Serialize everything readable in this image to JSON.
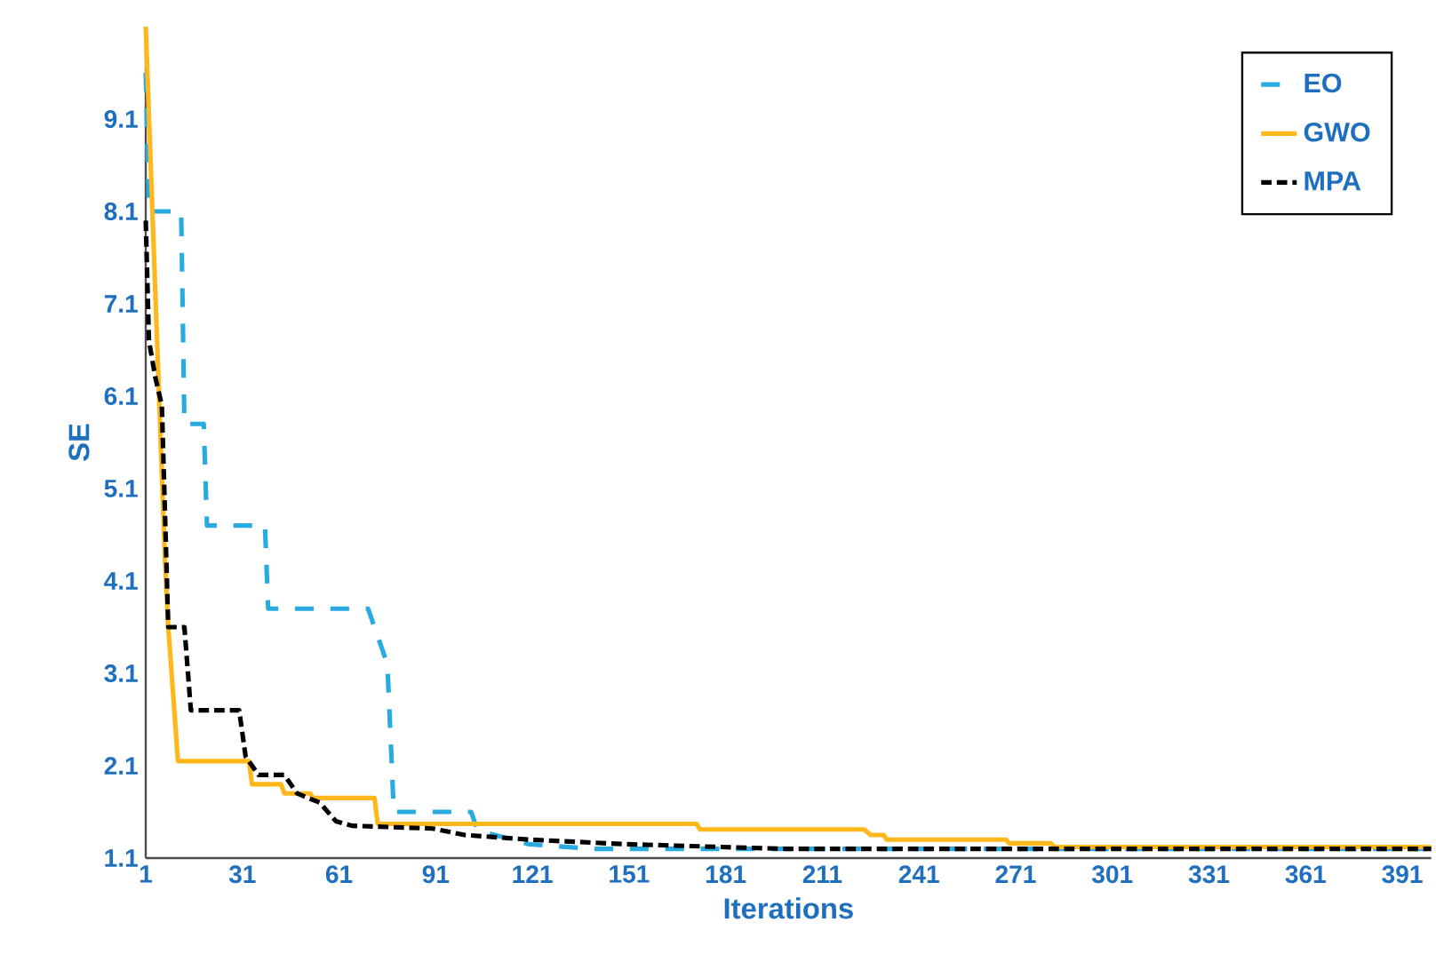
{
  "chart_data": {
    "type": "line",
    "xlabel": "Iterations",
    "ylabel": "SE",
    "xlim": [
      1,
      400
    ],
    "ylim": [
      1.1,
      10.1
    ],
    "xticks": [
      1,
      31,
      61,
      91,
      121,
      151,
      181,
      211,
      241,
      271,
      301,
      331,
      361,
      391
    ],
    "yticks": [
      1.1,
      2.1,
      3.1,
      4.1,
      5.1,
      6.1,
      7.1,
      8.1,
      9.1
    ],
    "grid": false,
    "legend": "top right",
    "marker": "none",
    "series": [
      {
        "name": "EO",
        "color": "#29abe2",
        "line_style": "dashed",
        "x": [
          1,
          2,
          12,
          13,
          19,
          20,
          38,
          39,
          70,
          76,
          78,
          102,
          104,
          120,
          140,
          400
        ],
        "values": [
          9.6,
          8.1,
          8.1,
          5.8,
          5.8,
          4.7,
          4.7,
          3.8,
          3.8,
          3.2,
          1.6,
          1.6,
          1.4,
          1.25,
          1.2,
          1.2
        ]
      },
      {
        "name": "GWO",
        "color": "#ffb81c",
        "line_style": "solid",
        "x": [
          1,
          7,
          8,
          11,
          33,
          34,
          43,
          44,
          52,
          53,
          72,
          73,
          172,
          173,
          224,
          226,
          230,
          231,
          268,
          269,
          282,
          283,
          400
        ],
        "values": [
          10.1,
          4.3,
          3.6,
          2.15,
          2.15,
          1.9,
          1.9,
          1.8,
          1.8,
          1.75,
          1.75,
          1.47,
          1.47,
          1.41,
          1.41,
          1.35,
          1.35,
          1.3,
          1.3,
          1.26,
          1.26,
          1.22,
          1.22
        ]
      },
      {
        "name": "MPA",
        "color": "#000000",
        "line_style": "densely dashed",
        "x": [
          1,
          2,
          4,
          6,
          8,
          13,
          15,
          30,
          32,
          36,
          44,
          48,
          55,
          60,
          65,
          90,
          100,
          120,
          150,
          200,
          400
        ],
        "values": [
          8.0,
          6.7,
          6.3,
          6.0,
          3.6,
          3.6,
          2.7,
          2.7,
          2.2,
          2.0,
          2.0,
          1.8,
          1.7,
          1.5,
          1.45,
          1.42,
          1.35,
          1.3,
          1.25,
          1.2,
          1.2
        ]
      }
    ]
  }
}
